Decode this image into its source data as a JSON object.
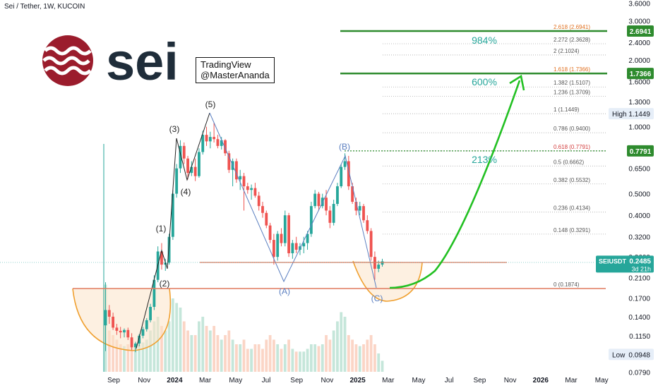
{
  "header": {
    "title": "Sei / Tether, 1W, KUCOIN"
  },
  "logo": {
    "text": "sei",
    "color": "#9b1c2c"
  },
  "watermark": {
    "line1": "TradingView",
    "line2": "@MasterAnanda"
  },
  "colors": {
    "up": "#26a69a",
    "down": "#ef5350",
    "target": "#2e8b2e",
    "arrow": "#22c022",
    "fibText": "#555555",
    "axis": "#131722",
    "curve": "#f0a030"
  },
  "chart_data": {
    "type": "candlestick",
    "title": "Sei / Tether, 1W, KUCOIN",
    "y_scale": "log",
    "ylim": [
      0.079,
      3.8
    ],
    "y_ticks": [
      "3.6000",
      "3.0000",
      "2.4000",
      "2.0000",
      "1.6000",
      "1.3000",
      "1.0000",
      "0.8000",
      "0.6500",
      "0.5000",
      "0.4000",
      "0.3200",
      "0.2600",
      "0.2100",
      "0.1700",
      "0.1400",
      "0.1150",
      "0.0948",
      "0.0790"
    ],
    "x_ticks": [
      "Sep",
      "Nov",
      "2024",
      "Mar",
      "May",
      "Jul",
      "Sep",
      "Nov",
      "2025",
      "Mar",
      "May",
      "Jul",
      "Sep",
      "Nov",
      "2026",
      "Mar",
      "May"
    ],
    "candles": [
      {
        "o": 0.128,
        "h": 0.2,
        "l": 0.098,
        "c": 0.15
      },
      {
        "o": 0.15,
        "h": 0.158,
        "l": 0.13,
        "c": 0.14
      },
      {
        "o": 0.14,
        "h": 0.146,
        "l": 0.122,
        "c": 0.125
      },
      {
        "o": 0.125,
        "h": 0.13,
        "l": 0.116,
        "c": 0.121
      },
      {
        "o": 0.121,
        "h": 0.126,
        "l": 0.112,
        "c": 0.119
      },
      {
        "o": 0.119,
        "h": 0.124,
        "l": 0.113,
        "c": 0.122
      },
      {
        "o": 0.122,
        "h": 0.125,
        "l": 0.11,
        "c": 0.113
      },
      {
        "o": 0.113,
        "h": 0.118,
        "l": 0.099,
        "c": 0.102
      },
      {
        "o": 0.102,
        "h": 0.108,
        "l": 0.097,
        "c": 0.106
      },
      {
        "o": 0.106,
        "h": 0.117,
        "l": 0.103,
        "c": 0.115
      },
      {
        "o": 0.115,
        "h": 0.126,
        "l": 0.112,
        "c": 0.123
      },
      {
        "o": 0.123,
        "h": 0.138,
        "l": 0.12,
        "c": 0.135
      },
      {
        "o": 0.135,
        "h": 0.16,
        "l": 0.132,
        "c": 0.155
      },
      {
        "o": 0.155,
        "h": 0.215,
        "l": 0.15,
        "c": 0.205
      },
      {
        "o": 0.205,
        "h": 0.29,
        "l": 0.2,
        "c": 0.275
      },
      {
        "o": 0.275,
        "h": 0.3,
        "l": 0.228,
        "c": 0.24
      },
      {
        "o": 0.24,
        "h": 0.255,
        "l": 0.225,
        "c": 0.245
      },
      {
        "o": 0.245,
        "h": 0.33,
        "l": 0.24,
        "c": 0.32
      },
      {
        "o": 0.32,
        "h": 0.52,
        "l": 0.31,
        "c": 0.5
      },
      {
        "o": 0.5,
        "h": 0.68,
        "l": 0.48,
        "c": 0.65
      },
      {
        "o": 0.65,
        "h": 0.87,
        "l": 0.62,
        "c": 0.82
      },
      {
        "o": 0.82,
        "h": 0.85,
        "l": 0.68,
        "c": 0.72
      },
      {
        "o": 0.72,
        "h": 0.74,
        "l": 0.58,
        "c": 0.62
      },
      {
        "o": 0.62,
        "h": 0.7,
        "l": 0.6,
        "c": 0.66
      },
      {
        "o": 0.66,
        "h": 0.72,
        "l": 0.57,
        "c": 0.6
      },
      {
        "o": 0.6,
        "h": 0.8,
        "l": 0.59,
        "c": 0.77
      },
      {
        "o": 0.77,
        "h": 0.96,
        "l": 0.75,
        "c": 0.92
      },
      {
        "o": 0.92,
        "h": 1.0,
        "l": 0.82,
        "c": 0.86
      },
      {
        "o": 0.86,
        "h": 0.95,
        "l": 0.8,
        "c": 0.9
      },
      {
        "o": 0.9,
        "h": 1.04,
        "l": 0.85,
        "c": 0.88
      },
      {
        "o": 0.88,
        "h": 0.92,
        "l": 0.8,
        "c": 0.82
      },
      {
        "o": 0.82,
        "h": 0.9,
        "l": 0.79,
        "c": 0.87
      },
      {
        "o": 0.87,
        "h": 0.88,
        "l": 0.74,
        "c": 0.76
      },
      {
        "o": 0.76,
        "h": 0.78,
        "l": 0.62,
        "c": 0.64
      },
      {
        "o": 0.64,
        "h": 0.72,
        "l": 0.54,
        "c": 0.7
      },
      {
        "o": 0.7,
        "h": 0.72,
        "l": 0.56,
        "c": 0.58
      },
      {
        "o": 0.58,
        "h": 0.64,
        "l": 0.52,
        "c": 0.6
      },
      {
        "o": 0.6,
        "h": 0.62,
        "l": 0.42,
        "c": 0.54
      },
      {
        "o": 0.54,
        "h": 0.56,
        "l": 0.5,
        "c": 0.52
      },
      {
        "o": 0.52,
        "h": 0.55,
        "l": 0.47,
        "c": 0.53
      },
      {
        "o": 0.53,
        "h": 0.56,
        "l": 0.48,
        "c": 0.49
      },
      {
        "o": 0.49,
        "h": 0.51,
        "l": 0.42,
        "c": 0.44
      },
      {
        "o": 0.44,
        "h": 0.46,
        "l": 0.39,
        "c": 0.41
      },
      {
        "o": 0.41,
        "h": 0.42,
        "l": 0.35,
        "c": 0.36
      },
      {
        "o": 0.36,
        "h": 0.37,
        "l": 0.3,
        "c": 0.31
      },
      {
        "o": 0.31,
        "h": 0.33,
        "l": 0.24,
        "c": 0.26
      },
      {
        "o": 0.26,
        "h": 0.34,
        "l": 0.25,
        "c": 0.33
      },
      {
        "o": 0.33,
        "h": 0.35,
        "l": 0.29,
        "c": 0.3
      },
      {
        "o": 0.3,
        "h": 0.42,
        "l": 0.29,
        "c": 0.4
      },
      {
        "o": 0.4,
        "h": 0.41,
        "l": 0.26,
        "c": 0.27
      },
      {
        "o": 0.27,
        "h": 0.31,
        "l": 0.255,
        "c": 0.3
      },
      {
        "o": 0.3,
        "h": 0.32,
        "l": 0.27,
        "c": 0.28
      },
      {
        "o": 0.28,
        "h": 0.3,
        "l": 0.265,
        "c": 0.29
      },
      {
        "o": 0.29,
        "h": 0.32,
        "l": 0.27,
        "c": 0.3
      },
      {
        "o": 0.3,
        "h": 0.34,
        "l": 0.28,
        "c": 0.33
      },
      {
        "o": 0.33,
        "h": 0.46,
        "l": 0.32,
        "c": 0.44
      },
      {
        "o": 0.44,
        "h": 0.52,
        "l": 0.43,
        "c": 0.5
      },
      {
        "o": 0.5,
        "h": 0.51,
        "l": 0.42,
        "c": 0.44
      },
      {
        "o": 0.44,
        "h": 0.5,
        "l": 0.43,
        "c": 0.48
      },
      {
        "o": 0.48,
        "h": 0.52,
        "l": 0.4,
        "c": 0.42
      },
      {
        "o": 0.42,
        "h": 0.44,
        "l": 0.35,
        "c": 0.37
      },
      {
        "o": 0.37,
        "h": 0.47,
        "l": 0.36,
        "c": 0.45
      },
      {
        "o": 0.45,
        "h": 0.56,
        "l": 0.44,
        "c": 0.54
      },
      {
        "o": 0.54,
        "h": 0.68,
        "l": 0.53,
        "c": 0.66
      },
      {
        "o": 0.66,
        "h": 0.76,
        "l": 0.64,
        "c": 0.7
      },
      {
        "o": 0.7,
        "h": 0.74,
        "l": 0.52,
        "c": 0.54
      },
      {
        "o": 0.54,
        "h": 0.56,
        "l": 0.45,
        "c": 0.46
      },
      {
        "o": 0.46,
        "h": 0.48,
        "l": 0.4,
        "c": 0.42
      },
      {
        "o": 0.42,
        "h": 0.46,
        "l": 0.4,
        "c": 0.44
      },
      {
        "o": 0.44,
        "h": 0.45,
        "l": 0.37,
        "c": 0.38
      },
      {
        "o": 0.38,
        "h": 0.4,
        "l": 0.33,
        "c": 0.34
      },
      {
        "o": 0.34,
        "h": 0.35,
        "l": 0.25,
        "c": 0.26
      },
      {
        "o": 0.26,
        "h": 0.275,
        "l": 0.205,
        "c": 0.23
      },
      {
        "o": 0.23,
        "h": 0.25,
        "l": 0.222,
        "c": 0.24
      },
      {
        "o": 0.24,
        "h": 0.255,
        "l": 0.235,
        "c": 0.2485
      }
    ],
    "volumes": [
      0.95,
      0.45,
      0.4,
      0.35,
      0.3,
      0.28,
      0.3,
      0.28,
      0.26,
      0.3,
      0.32,
      0.35,
      0.45,
      0.55,
      0.6,
      0.5,
      0.45,
      0.55,
      0.8,
      0.75,
      0.7,
      0.55,
      0.45,
      0.4,
      0.4,
      0.55,
      0.6,
      0.5,
      0.45,
      0.5,
      0.4,
      0.35,
      0.4,
      0.45,
      0.35,
      0.3,
      0.3,
      0.35,
      0.25,
      0.25,
      0.3,
      0.3,
      0.25,
      0.35,
      0.4,
      0.35,
      0.3,
      0.25,
      0.3,
      0.35,
      0.25,
      0.22,
      0.22,
      0.22,
      0.25,
      0.3,
      0.3,
      0.28,
      0.3,
      0.4,
      0.35,
      0.45,
      0.55,
      0.65,
      0.6,
      0.4,
      0.35,
      0.3,
      0.28,
      0.3,
      0.35,
      0.4,
      0.3,
      0.2,
      0.12
    ],
    "fib_levels": [
      {
        "ratio": "0",
        "price": 0.1874,
        "label": "0 (0.1874)"
      },
      {
        "ratio": "0.148",
        "price": 0.3291,
        "label": "0.148 (0.3291)"
      },
      {
        "ratio": "0.236",
        "price": 0.4134,
        "label": "0.236 (0.4134)"
      },
      {
        "ratio": "0.382",
        "price": 0.5532,
        "label": "0.382 (0.5532)"
      },
      {
        "ratio": "0.5",
        "price": 0.6662,
        "label": "0.5 (0.6662)"
      },
      {
        "ratio": "0.618",
        "price": 0.7791,
        "label": "0.618 (0.7791)"
      },
      {
        "ratio": "0.786",
        "price": 0.94,
        "label": "0.786 (0.9400)"
      },
      {
        "ratio": "1",
        "price": 1.1449,
        "label": "1 (1.1449)"
      },
      {
        "ratio": "1.236",
        "price": 1.3709,
        "label": "1.236 (1.3709)"
      },
      {
        "ratio": "1.382",
        "price": 1.5107,
        "label": "1.382 (1.5107)"
      },
      {
        "ratio": "1.618",
        "price": 1.7366,
        "label": "1.618 (1.7366)"
      },
      {
        "ratio": "2",
        "price": 2.1024,
        "label": "2 (2.1024)"
      },
      {
        "ratio": "2.272",
        "price": 2.3628,
        "label": "2.272 (2.3628)"
      },
      {
        "ratio": "2.618",
        "price": 2.6941,
        "label": "2.618 (2.6941)"
      }
    ],
    "targets": [
      {
        "price": 2.6941,
        "label": "2.6941",
        "pct": "984%"
      },
      {
        "price": 1.7366,
        "label": "1.7366",
        "pct": "600%"
      },
      {
        "price": 0.7791,
        "label": "0.7791",
        "pct": "213%"
      }
    ],
    "current": {
      "symbol": "SEIUSDT",
      "price": "0.2485",
      "countdown": "3d 21h"
    },
    "high": {
      "label": "High",
      "value": "1.1449"
    },
    "low": {
      "label": "Low",
      "value": "0.0948"
    },
    "support_line": 0.1874,
    "resistance_line": 0.2485,
    "wave_labels": {
      "impulse": [
        {
          "text": "(1)",
          "price": 0.33
        },
        {
          "text": "(2)",
          "price": 0.22
        },
        {
          "text": "(3)",
          "price": 0.86
        },
        {
          "text": "(4)",
          "price": 0.59
        },
        {
          "text": "(5)",
          "price": 1.04
        }
      ],
      "abc": [
        {
          "text": "(A)",
          "price": 0.205
        },
        {
          "text": "(B)",
          "price": 0.74
        },
        {
          "text": "(C)",
          "price": 0.188
        }
      ]
    }
  }
}
